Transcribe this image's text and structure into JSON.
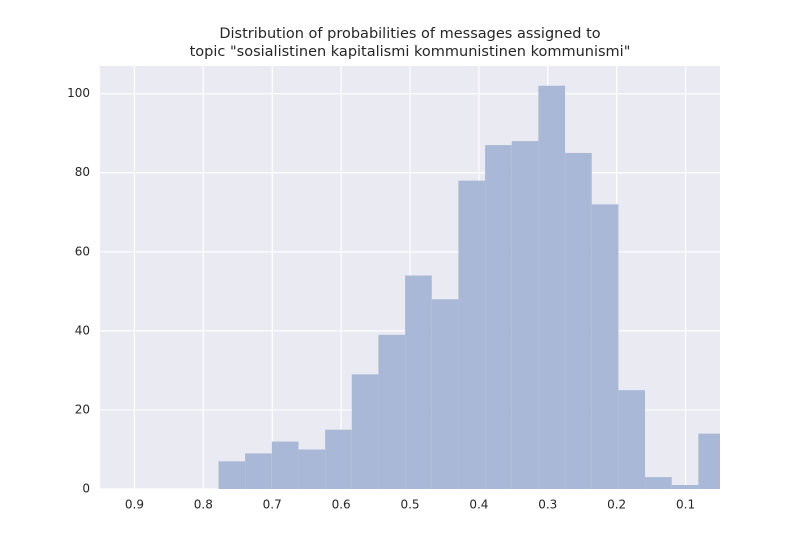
{
  "chart_data": {
    "type": "histogram",
    "title": [
      "Distribution of probabilities of messages assigned to",
      "topic \"sosialistinen kapitalismi kommunistinen kommunismi\""
    ],
    "bins": [
      0.778,
      0.7393,
      0.7006,
      0.6619,
      0.6232,
      0.5845,
      0.5458,
      0.5071,
      0.4684,
      0.4297,
      0.391,
      0.3523,
      0.3136,
      0.2749,
      0.2362,
      0.1975,
      0.1588,
      0.1201,
      0.0814,
      0.0427
    ],
    "values": [
      7,
      9,
      12,
      10,
      15,
      29,
      39,
      54,
      48,
      78,
      87,
      88,
      102,
      85,
      72,
      25,
      3,
      1,
      14
    ],
    "color": "#a9b8d7",
    "xlim": [
      0.95,
      0.05
    ],
    "xticks": [
      0.9,
      0.8,
      0.7,
      0.6,
      0.5,
      0.4,
      0.3,
      0.2,
      0.1
    ],
    "ylim": [
      0,
      107
    ],
    "yticks": [
      0,
      20,
      40,
      60,
      80,
      100
    ],
    "grid": true
  }
}
